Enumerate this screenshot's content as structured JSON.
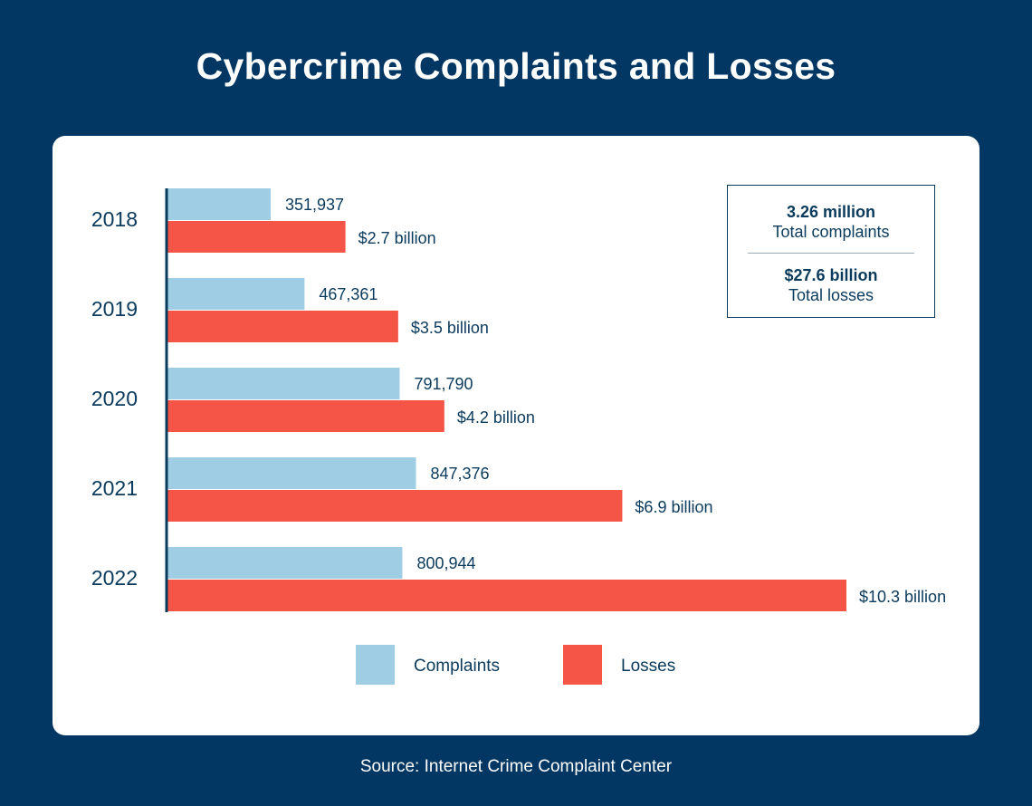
{
  "title": "Cybercrime Complaints and Losses",
  "source": "Source: Internet Crime Complaint Center",
  "summary": {
    "complaints_value": "3.26 million",
    "complaints_label": "Total complaints",
    "losses_value": "$27.6 billion",
    "losses_label": "Total losses"
  },
  "colors": {
    "background": "#023763",
    "complaints": "#9ecde4",
    "losses": "#f45546",
    "text": "#0a3a5c"
  },
  "chart_data": {
    "type": "bar",
    "orientation": "horizontal",
    "categories": [
      "2018",
      "2019",
      "2020",
      "2021",
      "2022"
    ],
    "series": [
      {
        "name": "Complaints",
        "values": [
          351937,
          467361,
          791790,
          847376,
          800944
        ],
        "labels": [
          "351,937",
          "467,361",
          "791,790",
          "847,376",
          "800,944"
        ]
      },
      {
        "name": "Losses",
        "values": [
          2.7,
          3.5,
          4.2,
          6.9,
          10.3
        ],
        "labels": [
          "$2.7 billion",
          "$3.5 billion",
          "$4.2 billion",
          "$6.9 billion",
          "$10.3 billion"
        ]
      }
    ],
    "legend_position": "bottom",
    "grid": false
  }
}
